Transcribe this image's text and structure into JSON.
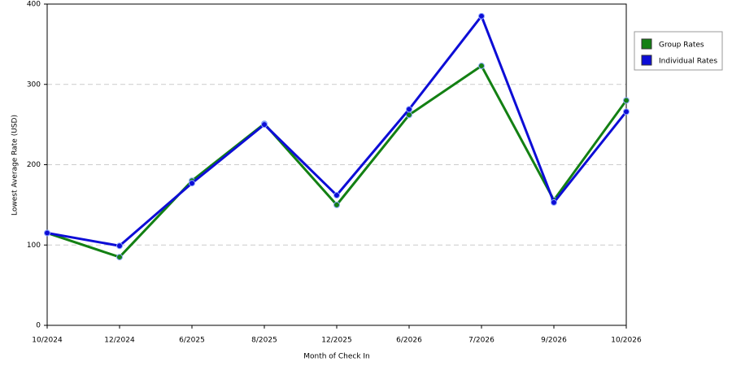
{
  "chart_data": {
    "type": "line",
    "x_label": "Month of Check In",
    "y_label": "Lowest Average Rate (USD)",
    "categories": [
      "10/2024",
      "12/2024",
      "6/2025",
      "8/2025",
      "12/2025",
      "6/2026",
      "7/2026",
      "9/2026",
      "10/2026"
    ],
    "series": [
      {
        "name": "Group Rates",
        "color": "#138013",
        "values": [
          115,
          85,
          180,
          251,
          150,
          262,
          323,
          156,
          280
        ]
      },
      {
        "name": "Individual Rates",
        "color": "#0d0dd6",
        "values": [
          115,
          99,
          177,
          250,
          162,
          269,
          385,
          153,
          266
        ]
      }
    ],
    "ylim": [
      0,
      400
    ],
    "yticks": [
      0,
      100,
      200,
      300,
      400
    ],
    "grid": true,
    "legend": "right"
  }
}
